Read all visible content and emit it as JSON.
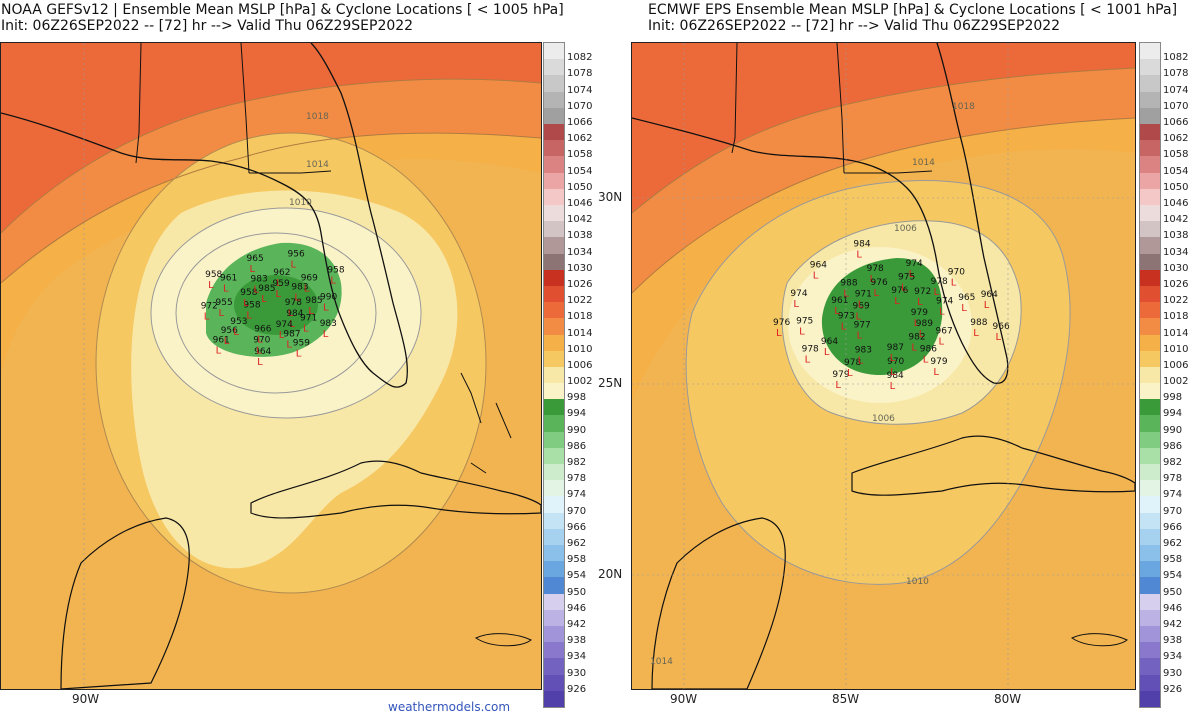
{
  "left_panel": {
    "title_line1": "NOAA GEFSv12 | Ensemble Mean MSLP [hPa] & Cyclone Locations [ < 1005 hPa]",
    "title_line2": "Init: 06Z26SEP2022 -- [72] hr --> Valid Thu 06Z29SEP2022",
    "contour_labels": [
      "1018",
      "1014",
      "1010"
    ],
    "lon_labels": [
      "90W"
    ],
    "credit": "weathermodels.com",
    "cyclone_values": [
      "978",
      "971",
      "959",
      "984",
      "987",
      "964",
      "974",
      "970",
      "961",
      "966",
      "956",
      "958",
      "953",
      "972",
      "958",
      "955",
      "958",
      "983",
      "961",
      "985",
      "962",
      "965",
      "959",
      "969",
      "956",
      "983",
      "990",
      "958",
      "985",
      "983"
    ]
  },
  "right_panel": {
    "title_line1": "ECMWF EPS Ensemble Mean MSLP [hPa] & Cyclone Locations [ < 1001 hPa]",
    "title_line2": "Init: 06Z26SEP2022 -- [72] hr --> Valid Thu 06Z29SEP2022",
    "contour_labels": [
      "1018",
      "1014",
      "1006",
      "1006",
      "1010",
      "1014"
    ],
    "lat_labels": [
      "30N",
      "25N",
      "20N"
    ],
    "lon_labels": [
      "90W",
      "85W",
      "80W"
    ],
    "cyclone_values": [
      "979",
      "967",
      "979",
      "989",
      "986",
      "984",
      "982",
      "970",
      "979",
      "987",
      "978",
      "977",
      "983",
      "978",
      "973",
      "964",
      "976",
      "961",
      "975",
      "969",
      "988",
      "974",
      "971",
      "978",
      "964",
      "976",
      "974",
      "984",
      "975",
      "970",
      "976",
      "978",
      "964",
      "972",
      "965",
      "966",
      "974",
      "988"
    ]
  },
  "colorbar": {
    "labels": [
      "1082",
      "1078",
      "1074",
      "1070",
      "1066",
      "1062",
      "1058",
      "1054",
      "1050",
      "1046",
      "1042",
      "1038",
      "1034",
      "1030",
      "1026",
      "1022",
      "1018",
      "1014",
      "1010",
      "1006",
      "1002",
      "998",
      "994",
      "990",
      "986",
      "982",
      "978",
      "974",
      "970",
      "966",
      "962",
      "958",
      "954",
      "950",
      "946",
      "942",
      "938",
      "934",
      "930",
      "926"
    ],
    "colors": [
      "#ececec",
      "#dadada",
      "#c8c8c8",
      "#b4b4b4",
      "#a0a0a0",
      "#b04a4a",
      "#c76464",
      "#db8282",
      "#eca5a5",
      "#f5c8c8",
      "#ecdcdc",
      "#d2c4c4",
      "#b09898",
      "#8c7474",
      "#c83020",
      "#e05030",
      "#ec6a3a",
      "#f28c44",
      "#f5b048",
      "#f6c862",
      "#f8e8a8",
      "#fbf3c8",
      "#3a9a3a",
      "#5ab45a",
      "#80cc80",
      "#a8e0a8",
      "#cceccc",
      "#e4f4e4",
      "#e0f2fa",
      "#c4e4f6",
      "#a6d2f0",
      "#8ac0ea",
      "#6aa6e0",
      "#5088d4",
      "#d6d0ee",
      "#bcb2e4",
      "#a294d8",
      "#8a78cc",
      "#7462c0",
      "#6250b6",
      "#5240aa"
    ]
  }
}
